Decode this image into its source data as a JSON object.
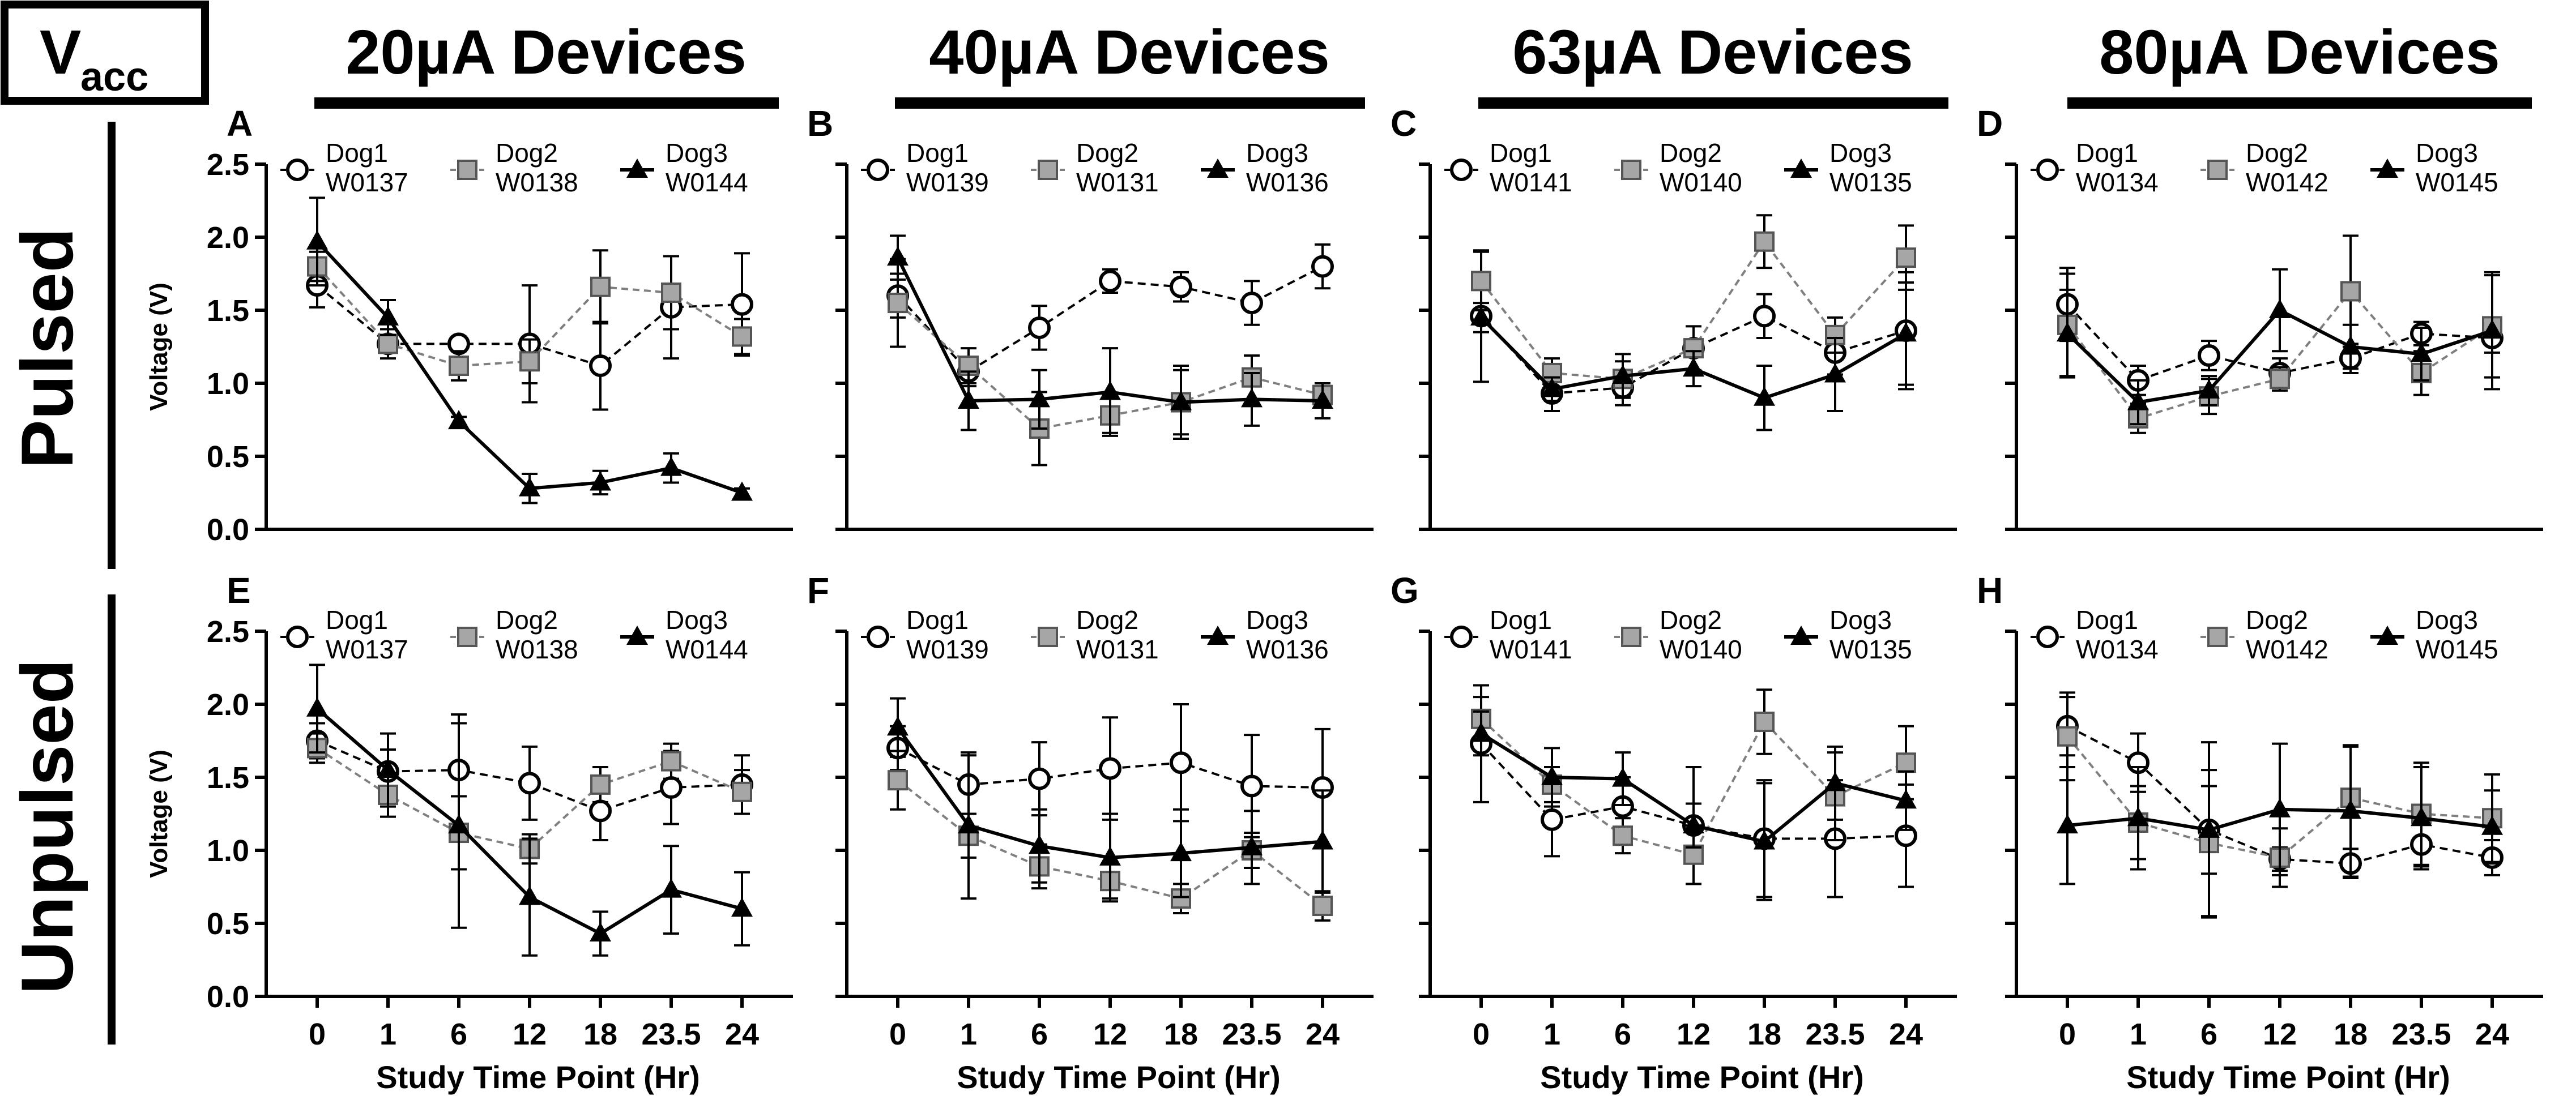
{
  "figure": {
    "badge_main": "V",
    "badge_sub": "acc",
    "row_labels": [
      "Pulsed",
      "Unpulsed"
    ],
    "column_titles": [
      "20µA Devices",
      "40µA Devices",
      "63µA Devices",
      "80µA Devices"
    ]
  },
  "colors": {
    "dog1_fill": "#ffffff",
    "dog2_fill": "#a6a6a6",
    "dog3_fill": "#000000",
    "line_dog2": "#7f7f7f",
    "ink": "#000000"
  },
  "chart_data": [
    {
      "panel": "A",
      "type": "line",
      "row": "Pulsed",
      "device": "20µA Devices",
      "title": "20µA Devices",
      "xlabel": "Study Time Point (Hr)",
      "ylabel": "Voltage (V)",
      "categories": [
        "0",
        "1",
        "6",
        "12",
        "18",
        "23.5",
        "24"
      ],
      "yticks": [
        "0.0",
        "0.5",
        "1.0",
        "1.5",
        "2.0",
        "2.5"
      ],
      "ylim": [
        0,
        2.5
      ],
      "series": [
        {
          "name": "Dog1",
          "device_id": "W0137",
          "values": [
            1.67,
            1.27,
            1.27,
            1.27,
            1.12,
            1.52,
            1.54
          ],
          "err": [
            0.15,
            0.1,
            0.05,
            0.4,
            0.3,
            0.35,
            0.35
          ]
        },
        {
          "name": "Dog2",
          "device_id": "W0138",
          "values": [
            1.8,
            1.27,
            1.12,
            1.15,
            1.66,
            1.62,
            1.32
          ],
          "err": [
            0.1,
            0.05,
            0.1,
            0.15,
            0.25,
            0.25,
            0.12
          ]
        },
        {
          "name": "Dog3",
          "device_id": "W0144",
          "values": [
            1.97,
            1.45,
            0.74,
            0.28,
            0.32,
            0.42,
            0.25
          ],
          "err": [
            0.3,
            0.12,
            0.03,
            0.1,
            0.08,
            0.1,
            0.03
          ]
        }
      ]
    },
    {
      "panel": "B",
      "type": "line",
      "row": "Pulsed",
      "device": "40µA Devices",
      "title": "40µA Devices",
      "xlabel": "Study Time Point (Hr)",
      "ylabel": "",
      "categories": [
        "0",
        "1",
        "6",
        "12",
        "18",
        "23.5",
        "24"
      ],
      "yticks": [
        "0.0",
        "0.5",
        "1.0",
        "1.5",
        "2.0",
        "2.5"
      ],
      "ylim": [
        0,
        2.5
      ],
      "series": [
        {
          "name": "Dog1",
          "device_id": "W0139",
          "values": [
            1.6,
            1.08,
            1.38,
            1.7,
            1.66,
            1.55,
            1.8
          ],
          "err": [
            0.15,
            0.1,
            0.15,
            0.08,
            0.1,
            0.15,
            0.15
          ]
        },
        {
          "name": "Dog2",
          "device_id": "W0131",
          "values": [
            1.55,
            1.12,
            0.69,
            0.78,
            0.87,
            1.04,
            0.92
          ],
          "err": [
            0.3,
            0.12,
            0.25,
            0.12,
            0.25,
            0.15,
            0.08
          ]
        },
        {
          "name": "Dog3",
          "device_id": "W0136",
          "values": [
            1.86,
            0.88,
            0.89,
            0.94,
            0.87,
            0.89,
            0.88
          ],
          "err": [
            0.15,
            0.2,
            0.2,
            0.3,
            0.22,
            0.18,
            0.12
          ]
        }
      ]
    },
    {
      "panel": "C",
      "type": "line",
      "row": "Pulsed",
      "device": "63µA Devices",
      "title": "63µA Devices",
      "xlabel": "Study Time Point (Hr)",
      "ylabel": "",
      "categories": [
        "0",
        "1",
        "6",
        "12",
        "18",
        "23.5",
        "24"
      ],
      "yticks": [
        "0.0",
        "0.5",
        "1.0",
        "1.5",
        "2.0",
        "2.5"
      ],
      "ylim": [
        0,
        2.5
      ],
      "series": [
        {
          "name": "Dog1",
          "device_id": "W0141",
          "values": [
            1.46,
            0.93,
            0.97,
            1.24,
            1.46,
            1.21,
            1.36
          ],
          "err": [
            0.45,
            0.12,
            0.12,
            0.15,
            0.15,
            0.15,
            0.4
          ]
        },
        {
          "name": "Dog2",
          "device_id": "W0140",
          "values": [
            1.7,
            1.07,
            1.03,
            1.24,
            1.97,
            1.33,
            1.86
          ],
          "err": [
            0.2,
            0.1,
            0.12,
            0.05,
            0.18,
            0.12,
            0.22
          ]
        },
        {
          "name": "Dog3",
          "device_id": "W0135",
          "values": [
            1.45,
            0.96,
            1.05,
            1.1,
            0.9,
            1.06,
            1.34
          ],
          "err": [
            0.1,
            0.08,
            0.15,
            0.12,
            0.22,
            0.25,
            0.35
          ]
        }
      ]
    },
    {
      "panel": "D",
      "type": "line",
      "row": "Pulsed",
      "device": "80µA Devices",
      "title": "80µA Devices",
      "xlabel": "Study Time Point (Hr)",
      "ylabel": "",
      "categories": [
        "0",
        "1",
        "6",
        "12",
        "18",
        "23.5",
        "24"
      ],
      "yticks": [
        "0.0",
        "0.5",
        "1.0",
        "1.5",
        "2.0",
        "2.5"
      ],
      "ylim": [
        0,
        2.5
      ],
      "series": [
        {
          "name": "Dog1",
          "device_id": "W0134",
          "values": [
            1.54,
            1.02,
            1.19,
            1.07,
            1.17,
            1.34,
            1.31
          ],
          "err": [
            0.25,
            0.1,
            0.1,
            0.1,
            0.1,
            0.08,
            0.1
          ]
        },
        {
          "name": "Dog2",
          "device_id": "W0142",
          "values": [
            1.4,
            0.76,
            0.91,
            1.03,
            1.63,
            1.07,
            1.39
          ],
          "err": [
            0.35,
            0.1,
            0.12,
            0.08,
            0.38,
            0.15,
            0.35
          ]
        },
        {
          "name": "Dog3",
          "device_id": "W0145",
          "values": [
            1.34,
            0.87,
            0.95,
            1.5,
            1.25,
            1.2,
            1.36
          ],
          "err": [
            0.3,
            0.15,
            0.1,
            0.28,
            0.15,
            0.18,
            0.4
          ]
        }
      ]
    },
    {
      "panel": "E",
      "type": "line",
      "row": "Unpulsed",
      "device": "20µA Devices",
      "title": "",
      "xlabel": "Study Time Point (Hr)",
      "ylabel": "Voltage (V)",
      "categories": [
        "0",
        "1",
        "6",
        "12",
        "18",
        "23.5",
        "24"
      ],
      "yticks": [
        "0.0",
        "0.5",
        "1.0",
        "1.5",
        "2.0",
        "2.5"
      ],
      "ylim": [
        0,
        2.5
      ],
      "series": [
        {
          "name": "Dog1",
          "device_id": "W0137",
          "values": [
            1.75,
            1.54,
            1.55,
            1.46,
            1.27,
            1.43,
            1.45
          ],
          "err": [
            0.12,
            0.15,
            0.38,
            0.25,
            0.2,
            0.25,
            0.2
          ]
        },
        {
          "name": "Dog2",
          "device_id": "W0138",
          "values": [
            1.7,
            1.38,
            1.12,
            1.01,
            1.45,
            1.61,
            1.4
          ],
          "err": [
            0.1,
            0.15,
            0.25,
            0.1,
            0.12,
            0.12,
            0.15
          ]
        },
        {
          "name": "Dog3",
          "device_id": "W0144",
          "values": [
            1.97,
            1.55,
            1.17,
            0.68,
            0.43,
            0.73,
            0.6
          ],
          "err": [
            0.3,
            0.25,
            0.7,
            0.4,
            0.15,
            0.3,
            0.25
          ]
        }
      ]
    },
    {
      "panel": "F",
      "type": "line",
      "row": "Unpulsed",
      "device": "40µA Devices",
      "title": "",
      "xlabel": "Study Time Point (Hr)",
      "ylabel": "",
      "categories": [
        "0",
        "1",
        "6",
        "12",
        "18",
        "23.5",
        "24"
      ],
      "yticks": [
        "0.0",
        "0.5",
        "1.0",
        "1.5",
        "2.0",
        "2.5"
      ],
      "ylim": [
        0,
        2.5
      ],
      "series": [
        {
          "name": "Dog1",
          "device_id": "W0139",
          "values": [
            1.7,
            1.45,
            1.49,
            1.56,
            1.6,
            1.44,
            1.43
          ],
          "err": [
            0.15,
            0.2,
            0.25,
            0.35,
            0.4,
            0.35,
            0.4
          ]
        },
        {
          "name": "Dog2",
          "device_id": "W0131",
          "values": [
            1.48,
            1.1,
            0.89,
            0.79,
            0.67,
            1.0,
            0.62
          ],
          "err": [
            0.2,
            0.15,
            0.15,
            0.12,
            0.1,
            0.12,
            0.1
          ]
        },
        {
          "name": "Dog3",
          "device_id": "W0136",
          "values": [
            1.84,
            1.17,
            1.03,
            0.95,
            0.98,
            1.02,
            1.06
          ],
          "err": [
            0.2,
            0.5,
            0.25,
            0.3,
            0.3,
            0.25,
            0.35
          ]
        }
      ]
    },
    {
      "panel": "G",
      "type": "line",
      "row": "Unpulsed",
      "device": "63µA Devices",
      "title": "",
      "xlabel": "Study Time Point (Hr)",
      "ylabel": "",
      "categories": [
        "0",
        "1",
        "6",
        "12",
        "18",
        "23.5",
        "24"
      ],
      "yticks": [
        "0.0",
        "0.5",
        "1.0",
        "1.5",
        "2.0",
        "2.5"
      ],
      "ylim": [
        0,
        2.5
      ],
      "series": [
        {
          "name": "Dog1",
          "device_id": "W0141",
          "values": [
            1.73,
            1.21,
            1.3,
            1.17,
            1.08,
            1.08,
            1.1
          ],
          "err": [
            0.4,
            0.25,
            0.2,
            0.4,
            0.4,
            0.4,
            0.35
          ]
        },
        {
          "name": "Dog2",
          "device_id": "W0140",
          "values": [
            1.9,
            1.45,
            1.1,
            0.97,
            1.88,
            1.37,
            1.6
          ],
          "err": [
            0.15,
            0.12,
            0.12,
            0.2,
            0.22,
            0.3,
            0.25
          ]
        },
        {
          "name": "Dog3",
          "device_id": "W0135",
          "values": [
            1.8,
            1.5,
            1.49,
            1.17,
            1.06,
            1.46,
            1.34
          ],
          "err": [
            0.15,
            0.2,
            0.18,
            0.15,
            0.4,
            0.25,
            0.2
          ]
        }
      ]
    },
    {
      "panel": "H",
      "type": "line",
      "row": "Unpulsed",
      "device": "80µA Devices",
      "title": "",
      "xlabel": "Study Time Point (Hr)",
      "ylabel": "",
      "categories": [
        "0",
        "1",
        "6",
        "12",
        "18",
        "23.5",
        "24"
      ],
      "yticks": [
        "0.0",
        "0.5",
        "1.0",
        "1.5",
        "2.0",
        "2.5"
      ],
      "ylim": [
        0,
        2.5
      ],
      "series": [
        {
          "name": "Dog1",
          "device_id": "W0134",
          "values": [
            1.85,
            1.6,
            1.14,
            0.94,
            0.91,
            1.04,
            0.95
          ],
          "err": [
            0.2,
            0.2,
            0.6,
            0.08,
            0.1,
            0.15,
            0.12
          ]
        },
        {
          "name": "Dog2",
          "device_id": "W0142",
          "values": [
            1.78,
            1.19,
            1.05,
            0.95,
            1.36,
            1.25,
            1.22
          ],
          "err": [
            0.3,
            0.25,
            0.5,
            0.2,
            0.35,
            0.35,
            0.3
          ]
        },
        {
          "name": "Dog3",
          "device_id": "W0145",
          "values": [
            1.17,
            1.22,
            1.14,
            1.28,
            1.27,
            1.22,
            1.16
          ],
          "err": [
            0.4,
            0.35,
            0.3,
            0.45,
            0.45,
            0.35,
            0.25
          ]
        }
      ]
    }
  ]
}
